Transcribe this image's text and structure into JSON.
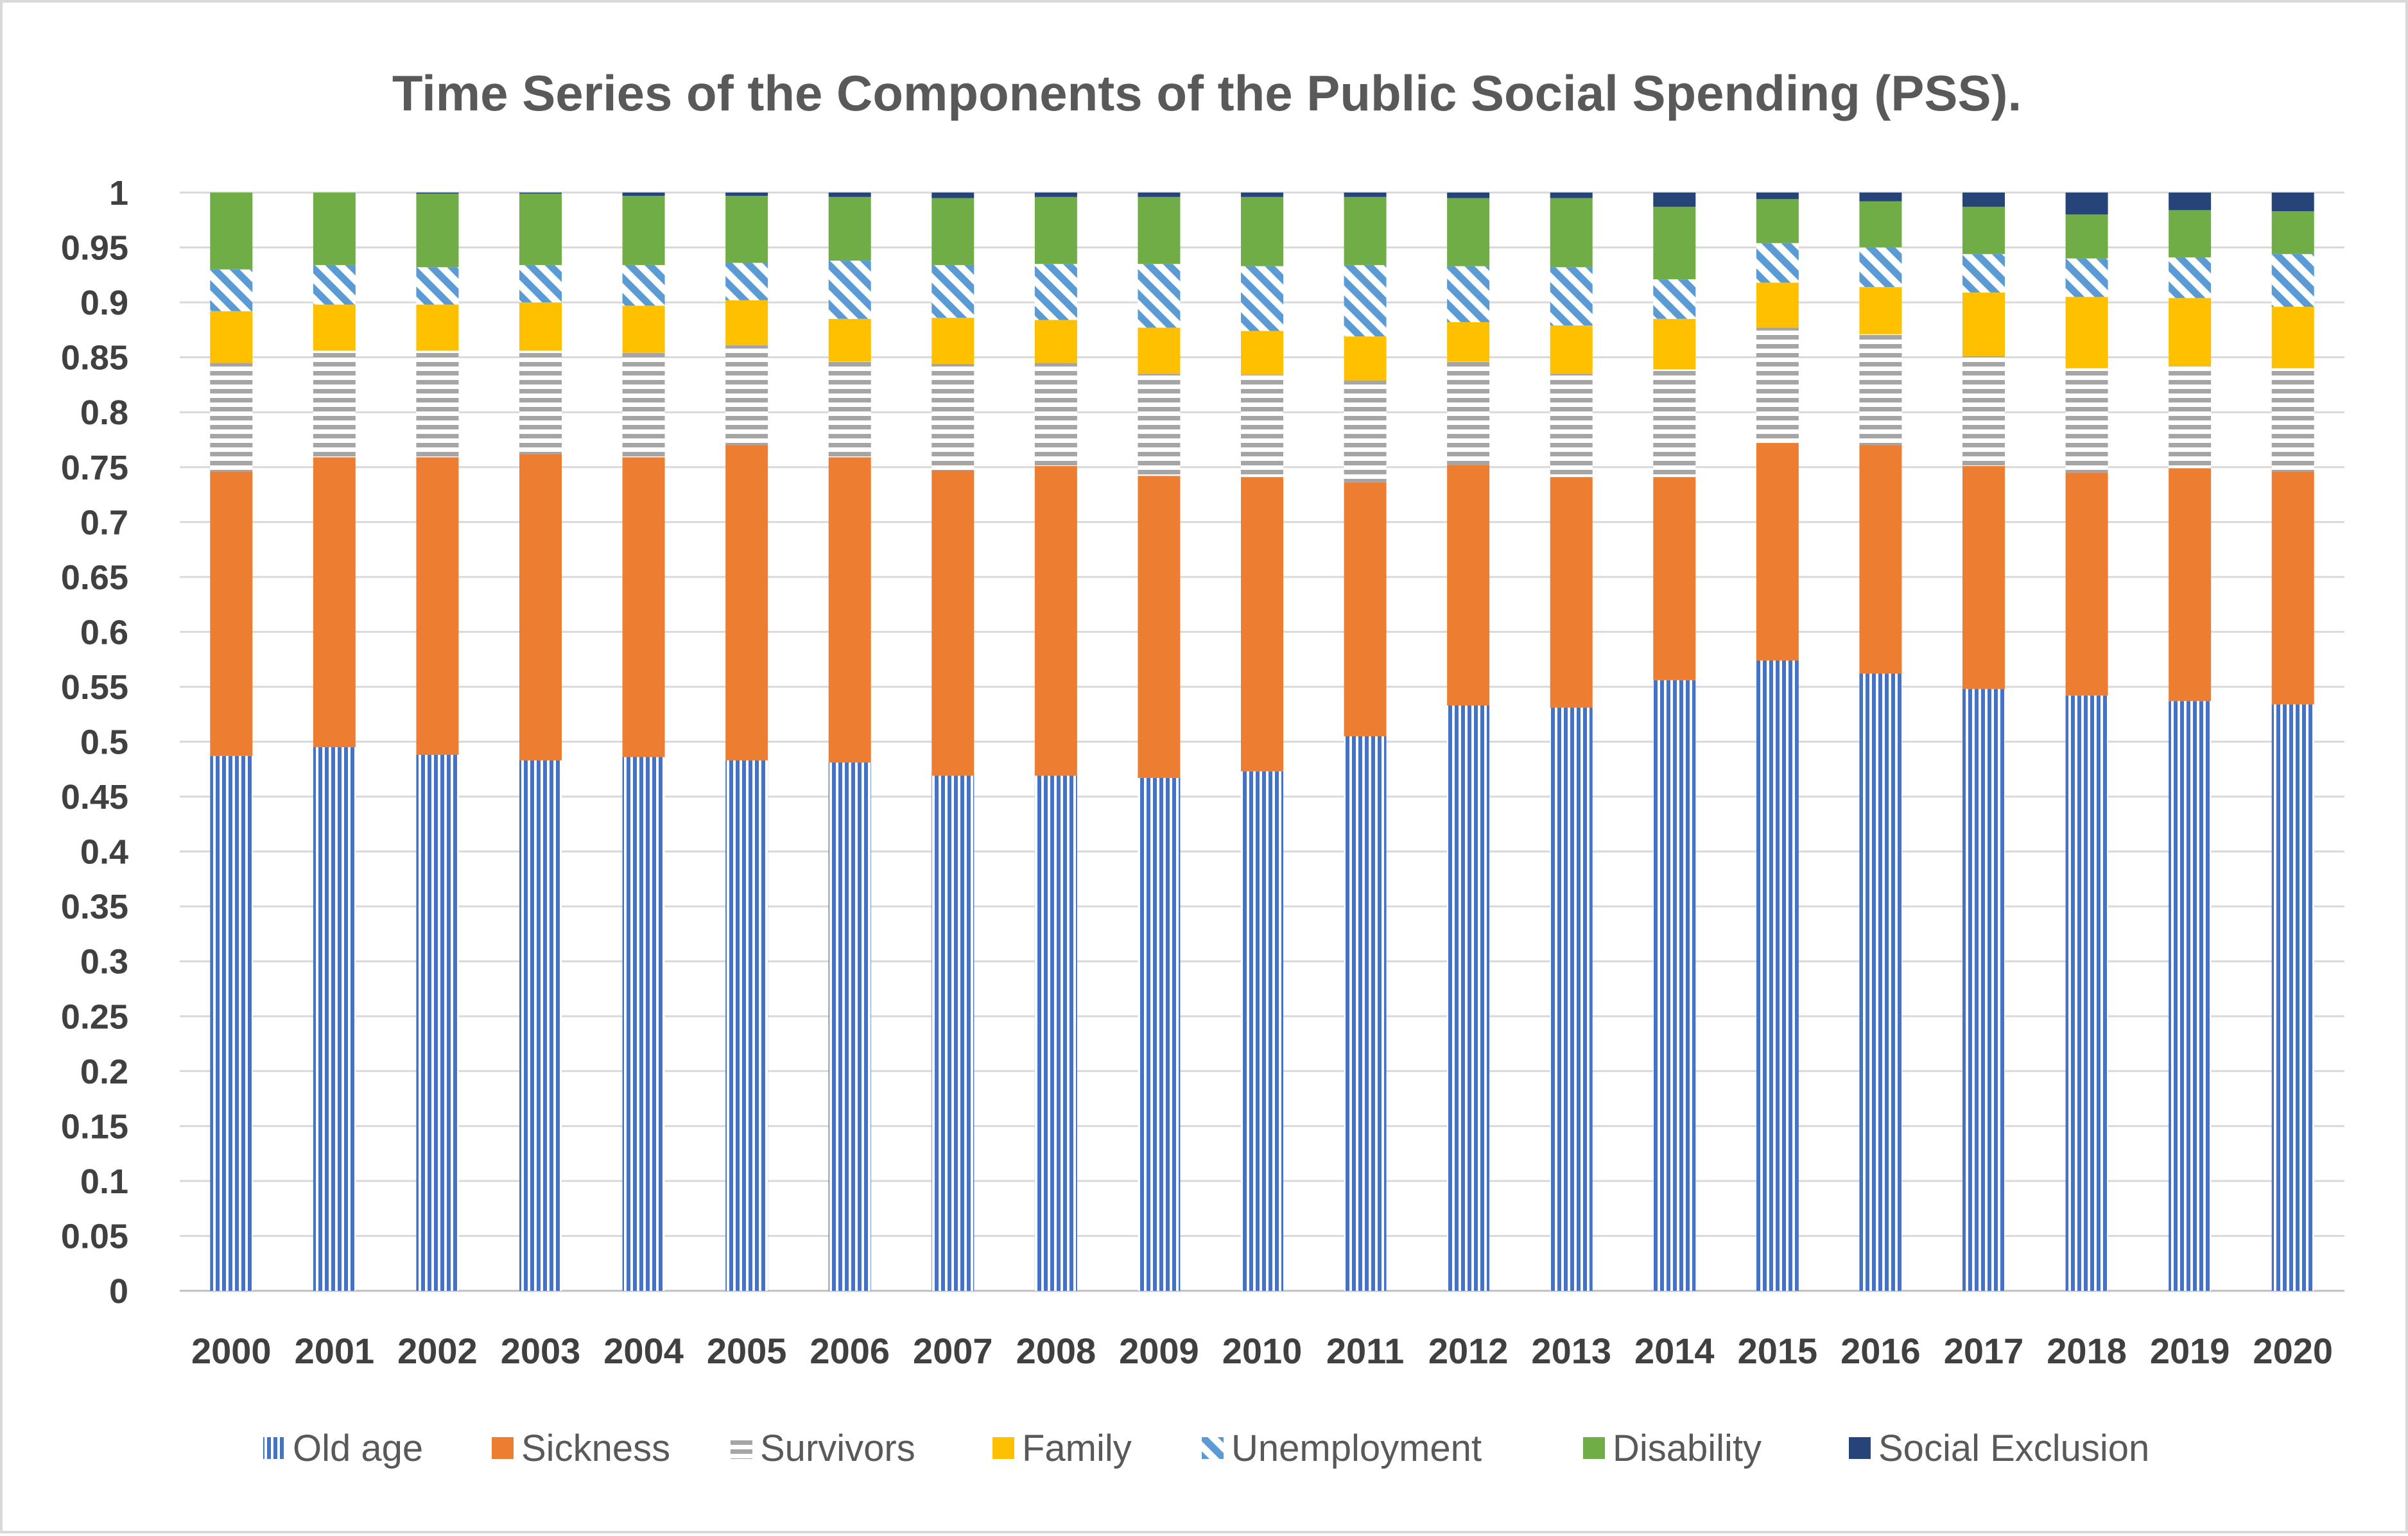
{
  "chart_data": {
    "type": "bar",
    "stacked": true,
    "title": "Time Series of the Components of the Public Social Spending (PSS).",
    "xlabel": "",
    "ylabel": "",
    "ylim": [
      0,
      1
    ],
    "y_ticks": [
      "0",
      "0.05",
      "0.1",
      "0.15",
      "0.2",
      "0.25",
      "0.3",
      "0.35",
      "0.4",
      "0.45",
      "0.5",
      "0.55",
      "0.6",
      "0.65",
      "0.7",
      "0.75",
      "0.8",
      "0.85",
      "0.9",
      "0.95",
      "1"
    ],
    "grid": true,
    "legend_position": "bottom",
    "categories": [
      "2000",
      "2001",
      "2002",
      "2003",
      "2004",
      "2005",
      "2006",
      "2007",
      "2008",
      "2009",
      "2010",
      "2011",
      "2012",
      "2013",
      "2014",
      "2015",
      "2016",
      "2017",
      "2018",
      "2019",
      "2020"
    ],
    "series": [
      {
        "name": "Old age",
        "color": "#4472c4",
        "pattern": "vertical-lines",
        "values": [
          0.487,
          0.495,
          0.488,
          0.483,
          0.486,
          0.483,
          0.481,
          0.469,
          0.469,
          0.467,
          0.473,
          0.505,
          0.533,
          0.531,
          0.556,
          0.574,
          0.562,
          0.548,
          0.542,
          0.537,
          0.534
        ]
      },
      {
        "name": "Sickness",
        "color": "#ed7d31",
        "pattern": "solid",
        "values": [
          0.259,
          0.264,
          0.271,
          0.279,
          0.273,
          0.287,
          0.278,
          0.278,
          0.282,
          0.275,
          0.268,
          0.231,
          0.219,
          0.21,
          0.185,
          0.198,
          0.208,
          0.203,
          0.203,
          0.212,
          0.212
        ]
      },
      {
        "name": "Survivors",
        "color": "#a5a5a5",
        "pattern": "horizontal-lines",
        "values": [
          0.099,
          0.097,
          0.097,
          0.094,
          0.095,
          0.091,
          0.087,
          0.097,
          0.094,
          0.093,
          0.093,
          0.093,
          0.094,
          0.094,
          0.098,
          0.105,
          0.101,
          0.1,
          0.095,
          0.093,
          0.094
        ]
      },
      {
        "name": "Family",
        "color": "#ffc000",
        "pattern": "solid",
        "values": [
          0.047,
          0.042,
          0.042,
          0.044,
          0.043,
          0.041,
          0.039,
          0.042,
          0.039,
          0.042,
          0.04,
          0.04,
          0.036,
          0.044,
          0.046,
          0.041,
          0.043,
          0.058,
          0.065,
          0.062,
          0.056
        ]
      },
      {
        "name": "Unemployment",
        "color": "#5b9bd5",
        "pattern": "diagonal-lines",
        "values": [
          0.038,
          0.036,
          0.034,
          0.034,
          0.037,
          0.034,
          0.053,
          0.048,
          0.051,
          0.058,
          0.059,
          0.065,
          0.051,
          0.053,
          0.036,
          0.036,
          0.036,
          0.035,
          0.035,
          0.037,
          0.048
        ]
      },
      {
        "name": "Disability",
        "color": "#70ad47",
        "pattern": "solid",
        "values": [
          0.07,
          0.066,
          0.067,
          0.065,
          0.063,
          0.061,
          0.058,
          0.061,
          0.061,
          0.061,
          0.063,
          0.062,
          0.062,
          0.063,
          0.066,
          0.04,
          0.042,
          0.043,
          0.04,
          0.043,
          0.039
        ]
      },
      {
        "name": "Social Exclusion",
        "color": "#264478",
        "pattern": "solid",
        "values": [
          0.0,
          0.0,
          0.001,
          0.001,
          0.003,
          0.003,
          0.004,
          0.005,
          0.004,
          0.004,
          0.004,
          0.004,
          0.005,
          0.005,
          0.013,
          0.006,
          0.008,
          0.013,
          0.02,
          0.016,
          0.017
        ]
      }
    ]
  }
}
